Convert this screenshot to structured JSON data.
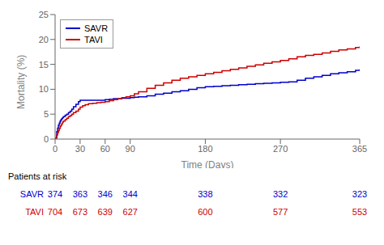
{
  "chart_data": {
    "type": "line",
    "x_label": "Time (Days)",
    "y_label": "Mortality (%)",
    "xlim": [
      0,
      365
    ],
    "ylim": [
      0,
      25
    ],
    "xticks": [
      0,
      30,
      60,
      90,
      180,
      270,
      365
    ],
    "yticks": [
      0,
      5,
      10,
      15,
      20,
      25
    ],
    "grid": false,
    "legend": "upper left",
    "x": [
      0,
      1,
      2,
      3,
      4,
      5,
      6,
      7,
      8,
      9,
      10,
      12,
      14,
      16,
      18,
      20,
      22,
      25,
      28,
      30,
      33,
      36,
      40,
      45,
      50,
      55,
      60,
      65,
      70,
      75,
      80,
      85,
      90,
      95,
      100,
      110,
      120,
      130,
      140,
      150,
      160,
      170,
      180,
      190,
      200,
      210,
      220,
      230,
      240,
      250,
      260,
      270,
      280,
      290,
      300,
      310,
      320,
      330,
      340,
      350,
      360,
      365
    ],
    "series": [
      {
        "name": "SAVR",
        "color": "#0000CC",
        "line_style": "step",
        "values": [
          0,
          0.3,
          1.5,
          2.2,
          2.8,
          3.2,
          3.6,
          3.9,
          4.1,
          4.3,
          4.5,
          4.8,
          5.0,
          5.3,
          5.6,
          6.0,
          6.5,
          7.0,
          7.5,
          7.8,
          7.8,
          7.8,
          7.8,
          7.8,
          7.8,
          7.8,
          7.9,
          8.0,
          8.1,
          8.1,
          8.2,
          8.2,
          8.3,
          8.4,
          8.5,
          8.7,
          9.0,
          9.2,
          9.5,
          9.7,
          10.0,
          10.3,
          10.5,
          10.6,
          10.7,
          10.8,
          10.9,
          11.0,
          11.1,
          11.2,
          11.3,
          11.4,
          11.5,
          11.8,
          12.2,
          12.5,
          12.8,
          13.1,
          13.3,
          13.5,
          13.8,
          14.0
        ]
      },
      {
        "name": "TAVI",
        "color": "#CC0000",
        "line_style": "step",
        "values": [
          0,
          0.2,
          0.8,
          1.3,
          1.7,
          2.1,
          2.5,
          2.8,
          3.1,
          3.4,
          3.6,
          3.9,
          4.2,
          4.5,
          4.7,
          5.0,
          5.3,
          5.6,
          6.0,
          6.4,
          6.7,
          6.9,
          7.1,
          7.2,
          7.3,
          7.4,
          7.5,
          7.7,
          7.9,
          8.1,
          8.3,
          8.5,
          8.7,
          9.1,
          9.5,
          10.2,
          10.8,
          11.3,
          11.8,
          12.2,
          12.5,
          12.8,
          13.1,
          13.4,
          13.7,
          14.0,
          14.3,
          14.6,
          14.9,
          15.2,
          15.5,
          15.8,
          16.1,
          16.5,
          16.8,
          17.0,
          17.3,
          17.6,
          17.9,
          18.1,
          18.4,
          18.6
        ]
      }
    ],
    "risk_table": {
      "title": "Patients at risk",
      "times": [
        0,
        30,
        60,
        90,
        180,
        270,
        365
      ],
      "rows": [
        {
          "name": "SAVR",
          "color": "#0000CC",
          "values": [
            374,
            363,
            346,
            344,
            338,
            332,
            323
          ]
        },
        {
          "name": "TAVI",
          "color": "#CC0000",
          "values": [
            704,
            673,
            639,
            627,
            600,
            577,
            553
          ]
        }
      ]
    }
  }
}
